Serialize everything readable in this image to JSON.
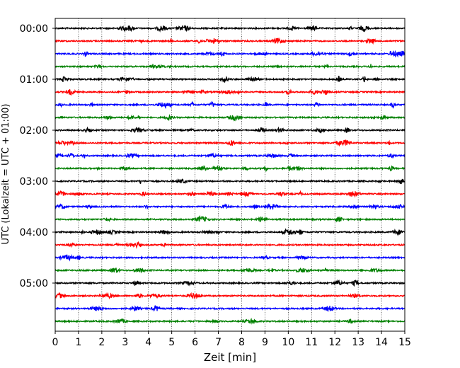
{
  "chart_data": {
    "type": "line",
    "title": "",
    "xlabel": "Zeit  [min]",
    "ylabel": "UTC (Lokalzeit = UTC + 01:00)",
    "xlim": [
      0,
      15
    ],
    "x_ticks": [
      "0",
      "1",
      "2",
      "3",
      "4",
      "5",
      "6",
      "7",
      "8",
      "9",
      "10",
      "11",
      "12",
      "13",
      "14",
      "15"
    ],
    "x_grid": "dotted vertical lines at each minute",
    "row_interval_minutes": 15,
    "row_count": 24,
    "y_ticks": [
      "00:00",
      "01:00",
      "02:00",
      "03:00",
      "04:00",
      "05:00"
    ],
    "row_color_cycle": [
      "#000000",
      "#ff0000",
      "#0000ff",
      "#008000"
    ],
    "rows": [
      {
        "label": "00:00",
        "color": "#000000"
      },
      {
        "label": "00:15",
        "color": "#ff0000"
      },
      {
        "label": "00:30",
        "color": "#0000ff"
      },
      {
        "label": "00:45",
        "color": "#008000"
      },
      {
        "label": "01:00",
        "color": "#000000"
      },
      {
        "label": "01:15",
        "color": "#ff0000"
      },
      {
        "label": "01:30",
        "color": "#0000ff"
      },
      {
        "label": "01:45",
        "color": "#008000"
      },
      {
        "label": "02:00",
        "color": "#000000"
      },
      {
        "label": "02:15",
        "color": "#ff0000"
      },
      {
        "label": "02:30",
        "color": "#0000ff"
      },
      {
        "label": "02:45",
        "color": "#008000"
      },
      {
        "label": "03:00",
        "color": "#000000"
      },
      {
        "label": "03:15",
        "color": "#ff0000"
      },
      {
        "label": "03:30",
        "color": "#0000ff"
      },
      {
        "label": "03:45",
        "color": "#008000"
      },
      {
        "label": "04:00",
        "color": "#000000"
      },
      {
        "label": "04:15",
        "color": "#ff0000"
      },
      {
        "label": "04:30",
        "color": "#0000ff"
      },
      {
        "label": "04:45",
        "color": "#008000"
      },
      {
        "label": "05:00",
        "color": "#000000"
      },
      {
        "label": "05:15",
        "color": "#ff0000"
      },
      {
        "label": "05:30",
        "color": "#0000ff"
      },
      {
        "label": "05:45",
        "color": "#008000"
      }
    ]
  }
}
